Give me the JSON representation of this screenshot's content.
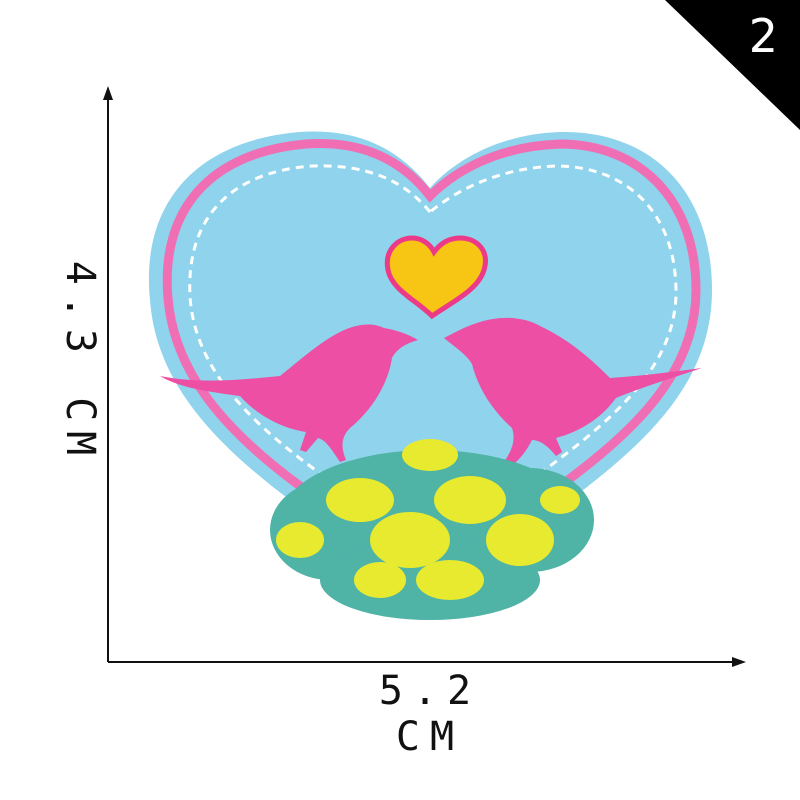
{
  "image_number": "2",
  "dimensions": {
    "width_label": "5.2 CM",
    "height_label": "4.3 CM"
  },
  "colors": {
    "felt": "#8fd3ec",
    "border": "#f06fb4",
    "birds": "#ec4fa4",
    "small_heart": "#f7c514",
    "small_heart_border": "#ec3a88",
    "foliage_yellow": "#e7ea2f",
    "foliage_teal": "#4fb3a6",
    "stitch": "#ffffff"
  }
}
